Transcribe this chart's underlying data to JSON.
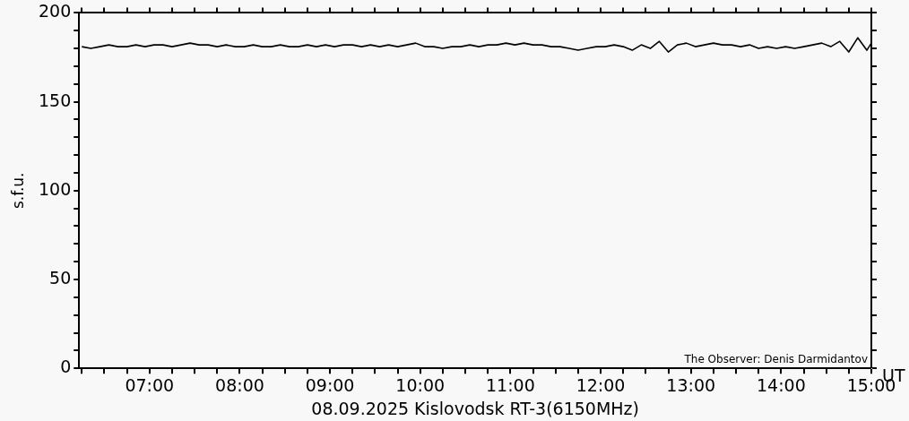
{
  "chart_data": {
    "type": "line",
    "title": "08.09.2025 Kislovodsk RT-3(6150MHz)",
    "xlabel": "UT",
    "ylabel": "s.f.u.",
    "annotations": [
      "The Observer: Denis Darmidantov"
    ],
    "x": [
      6.25,
      6.35,
      6.45,
      6.55,
      6.65,
      6.75,
      6.85,
      6.95,
      7.05,
      7.15,
      7.25,
      7.35,
      7.45,
      7.55,
      7.65,
      7.75,
      7.85,
      7.95,
      8.05,
      8.15,
      8.25,
      8.35,
      8.45,
      8.55,
      8.65,
      8.75,
      8.85,
      8.95,
      9.05,
      9.15,
      9.25,
      9.35,
      9.45,
      9.55,
      9.65,
      9.75,
      9.85,
      9.95,
      10.05,
      10.15,
      10.25,
      10.35,
      10.45,
      10.55,
      10.65,
      10.75,
      10.85,
      10.95,
      11.05,
      11.15,
      11.25,
      11.35,
      11.45,
      11.55,
      11.65,
      11.75,
      11.85,
      11.95,
      12.05,
      12.15,
      12.25,
      12.35,
      12.45,
      12.55,
      12.65,
      12.75,
      12.85,
      12.95,
      13.05,
      13.15,
      13.25,
      13.35,
      13.45,
      13.55,
      13.65,
      13.75,
      13.85,
      13.95,
      14.05,
      14.15,
      14.25,
      14.35,
      14.45,
      14.55,
      14.65,
      14.75,
      14.85,
      14.95,
      15.0
    ],
    "series": [
      {
        "color": "#000000",
        "values": [
          181,
          180,
          181,
          182,
          181,
          181,
          182,
          181,
          182,
          182,
          181,
          182,
          183,
          182,
          182,
          181,
          182,
          181,
          181,
          182,
          181,
          181,
          182,
          181,
          181,
          182,
          181,
          182,
          181,
          182,
          182,
          181,
          182,
          181,
          182,
          181,
          182,
          183,
          181,
          181,
          180,
          181,
          181,
          182,
          181,
          182,
          182,
          183,
          182,
          183,
          182,
          182,
          181,
          181,
          180,
          179,
          180,
          181,
          181,
          182,
          181,
          179,
          182,
          180,
          184,
          178,
          182,
          183,
          181,
          182,
          183,
          182,
          182,
          181,
          182,
          180,
          181,
          180,
          181,
          180,
          181,
          182,
          183,
          181,
          184,
          178,
          186,
          179,
          183
        ]
      }
    ],
    "xlim": [
      6.22,
      15.0
    ],
    "xticks": [
      {
        "value": 6.25,
        "label": null
      },
      {
        "value": 6.5,
        "label": null
      },
      {
        "value": 6.75,
        "label": null
      },
      {
        "value": 7,
        "label": "07:00"
      },
      {
        "value": 7.25,
        "label": null
      },
      {
        "value": 7.5,
        "label": null
      },
      {
        "value": 7.75,
        "label": null
      },
      {
        "value": 8,
        "label": "08:00"
      },
      {
        "value": 8.25,
        "label": null
      },
      {
        "value": 8.5,
        "label": null
      },
      {
        "value": 8.75,
        "label": null
      },
      {
        "value": 9,
        "label": "09:00"
      },
      {
        "value": 9.25,
        "label": null
      },
      {
        "value": 9.5,
        "label": null
      },
      {
        "value": 9.75,
        "label": null
      },
      {
        "value": 10,
        "label": "10:00"
      },
      {
        "value": 10.25,
        "label": null
      },
      {
        "value": 10.5,
        "label": null
      },
      {
        "value": 10.75,
        "label": null
      },
      {
        "value": 11,
        "label": "11:00"
      },
      {
        "value": 11.25,
        "label": null
      },
      {
        "value": 11.5,
        "label": null
      },
      {
        "value": 11.75,
        "label": null
      },
      {
        "value": 12,
        "label": "12:00"
      },
      {
        "value": 12.25,
        "label": null
      },
      {
        "value": 12.5,
        "label": null
      },
      {
        "value": 12.75,
        "label": null
      },
      {
        "value": 13,
        "label": "13:00"
      },
      {
        "value": 13.25,
        "label": null
      },
      {
        "value": 13.5,
        "label": null
      },
      {
        "value": 13.75,
        "label": null
      },
      {
        "value": 14,
        "label": "14:00"
      },
      {
        "value": 14.25,
        "label": null
      },
      {
        "value": 14.5,
        "label": null
      },
      {
        "value": 14.75,
        "label": null
      },
      {
        "value": 15,
        "label": "15:00"
      }
    ],
    "ylim": [
      0,
      200
    ],
    "yticks": [
      0,
      {
        "value": 10,
        "label": null
      },
      {
        "value": 20,
        "label": null
      },
      {
        "value": 30,
        "label": null
      },
      {
        "value": 40,
        "label": null
      },
      50,
      {
        "value": 60,
        "label": null
      },
      {
        "value": 70,
        "label": null
      },
      {
        "value": 80,
        "label": null
      },
      {
        "value": 90,
        "label": null
      },
      100,
      {
        "value": 110,
        "label": null
      },
      {
        "value": 120,
        "label": null
      },
      {
        "value": 130,
        "label": null
      },
      {
        "value": 140,
        "label": null
      },
      150,
      {
        "value": 160,
        "label": null
      },
      {
        "value": 170,
        "label": null
      },
      {
        "value": 180,
        "label": null
      },
      {
        "value": 190,
        "label": null
      },
      200
    ],
    "grid": false,
    "legend": false,
    "marker": "none",
    "line_style": "solid"
  }
}
